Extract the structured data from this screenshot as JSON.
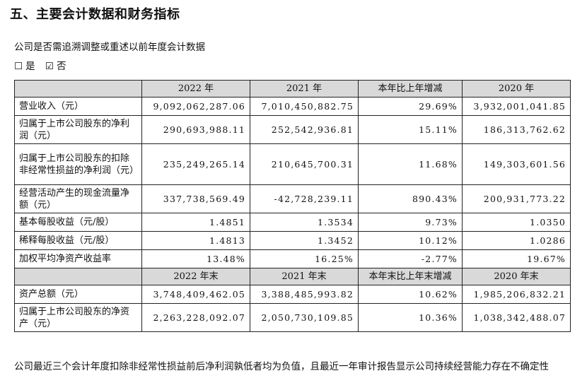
{
  "title": "五、主要会计数据和财务指标",
  "question": "公司是否需追溯调整或重述以前年度会计数据",
  "options": {
    "yes_box": "☐",
    "yes_label": "是",
    "no_box": "☑",
    "no_label": "否"
  },
  "table": {
    "header1": [
      "",
      "2022 年",
      "2021 年",
      "本年比上年增减",
      "2020 年"
    ],
    "rows1": [
      [
        "营业收入（元）",
        "9,092,062,287.06",
        "7,010,450,882.75",
        "29.69%",
        "3,932,001,041.85"
      ],
      [
        "归属于上市公司股东的净利润（元）",
        "290,693,988.11",
        "252,542,936.81",
        "15.11%",
        "186,313,762.62"
      ],
      [
        "归属于上市公司股东的扣除非经常性损益的净利润（元）",
        "235,249,265.14",
        "210,645,700.31",
        "11.68%",
        "149,303,601.56"
      ],
      [
        "经营活动产生的现金流量净额（元）",
        "337,738,569.49",
        "-42,728,239.11",
        "890.43%",
        "200,931,773.22"
      ],
      [
        "基本每股收益（元/股）",
        "1.4851",
        "1.3534",
        "9.73%",
        "1.0350"
      ],
      [
        "稀释每股收益（元/股）",
        "1.4813",
        "1.3452",
        "10.12%",
        "1.0286"
      ],
      [
        "加权平均净资产收益率",
        "13.48%",
        "16.25%",
        "-2.77%",
        "19.67%"
      ]
    ],
    "header2": [
      "",
      "2022 年末",
      "2021 年末",
      "本年末比上年末增减",
      "2020 年末"
    ],
    "rows2": [
      [
        "资产总额（元）",
        "3,748,409,462.05",
        "3,388,485,993.82",
        "10.62%",
        "1,985,206,832.21"
      ],
      [
        "归属于上市公司股东的净资产（元）",
        "2,263,228,092.07",
        "2,050,730,109.85",
        "10.36%",
        "1,038,342,488.07"
      ]
    ]
  },
  "footnote": "公司最近三个会计年度扣除非经常性损益前后净利润孰低者均为负值，且最近一年审计报告显示公司持续经营能力存在不确定性"
}
